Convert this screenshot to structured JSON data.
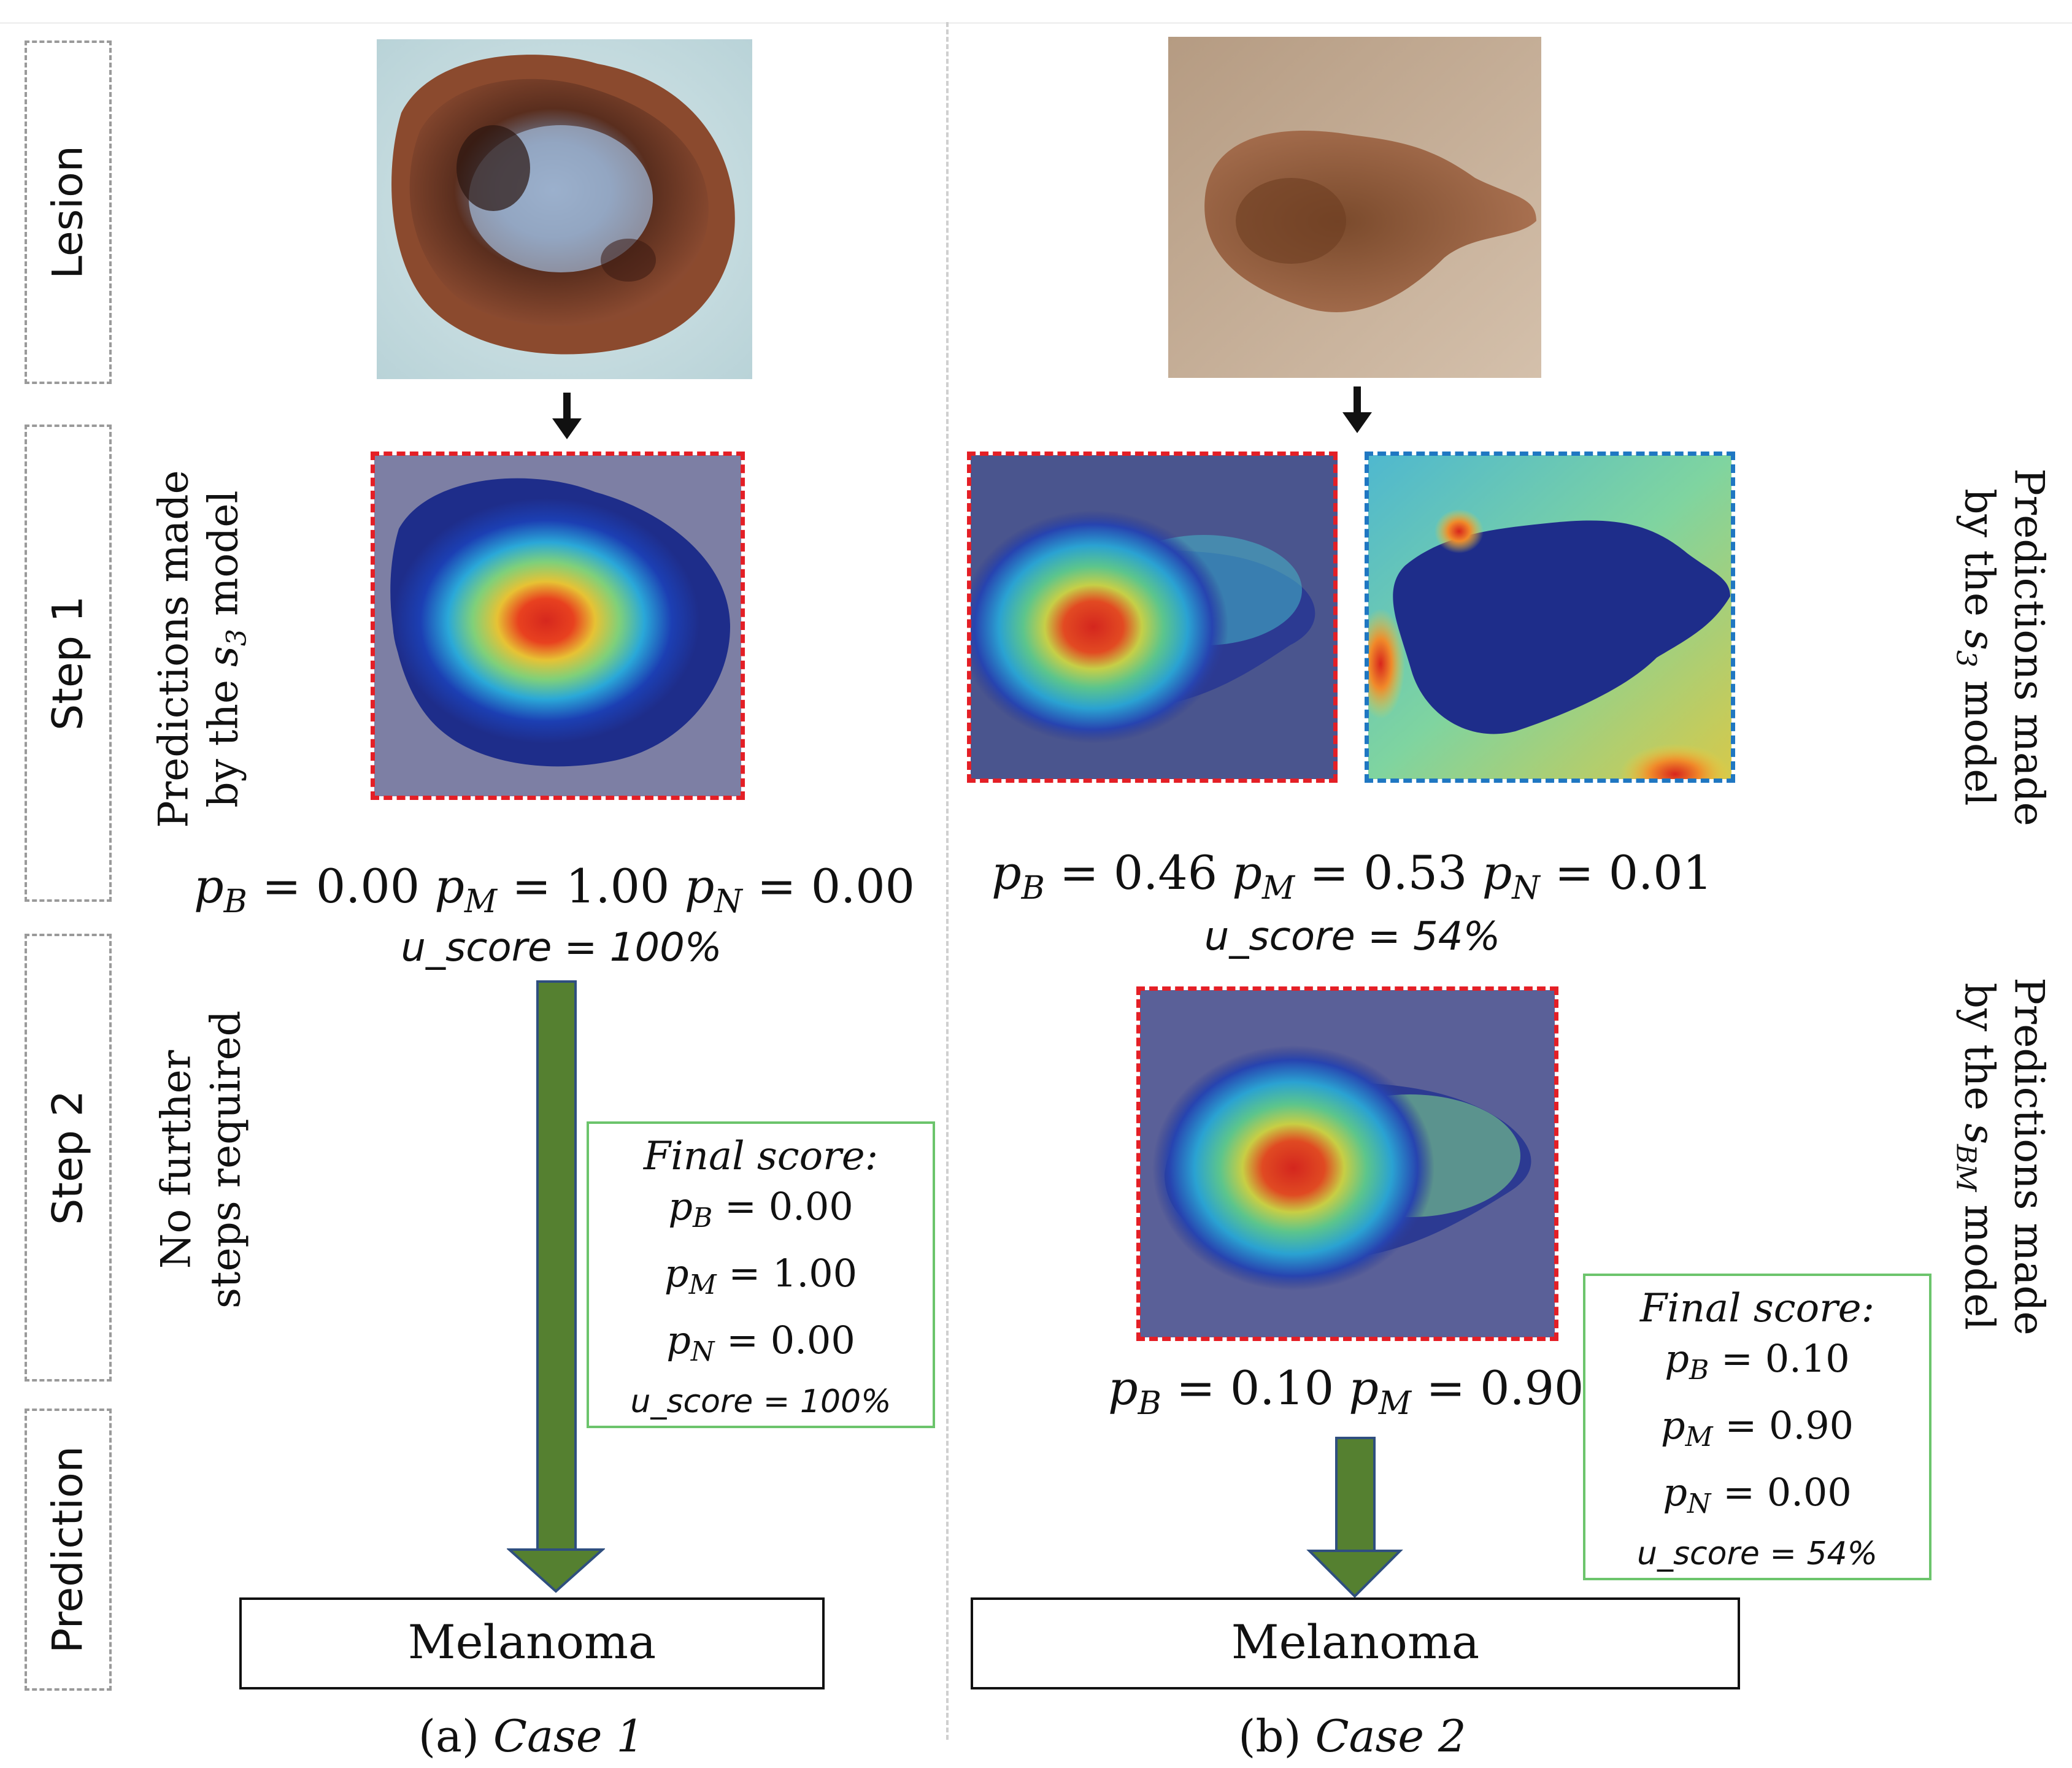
{
  "row_labels": {
    "lesion": "Lesion",
    "step1": "Step 1",
    "step2": "Step 2",
    "prediction": "Prediction"
  },
  "annotations": {
    "left_step1_line1": "Predictions made",
    "left_step1_line2_prefix": "by the ",
    "left_step1_model_var": "s",
    "left_step1_model_sub": "3",
    "left_step1_suffix": " model",
    "left_step2_line1": "No further",
    "left_step2_line2": "steps required",
    "right_step1_line1": "Predictions made",
    "right_step1_line2_prefix": "by the ",
    "right_step1_model_var": "s",
    "right_step1_model_sub": "3",
    "right_step1_suffix": " model",
    "right_step2_line1": "Predictions made",
    "right_step2_line2_prefix": "by the ",
    "right_step2_model_var": "s",
    "right_step2_model_sub": "BM",
    "right_step2_suffix": " model"
  },
  "prob_symbols": {
    "p": "p",
    "B": "B",
    "M": "M",
    "N": "N",
    "eq": " = "
  },
  "case1": {
    "step1_pB": "0.00",
    "step1_pM": "1.00",
    "step1_pN": "0.00",
    "step1_uscore": "u_score = 100%",
    "final_title": "Final score:",
    "final_pB": "0.00",
    "final_pM": "1.00",
    "final_pN": "0.00",
    "final_uscore": "u_score = 100%",
    "output": "Melanoma",
    "caption_label": "(a)",
    "caption_text": "Case 1"
  },
  "case2": {
    "step1_pB": "0.46",
    "step1_pM": "0.53",
    "step1_pN": "0.01",
    "step1_uscore": "u_score = 54%",
    "step2_pB": "0.10",
    "step2_pM": "0.90",
    "final_title": "Final score:",
    "final_pB": "0.10",
    "final_pM": "0.90",
    "final_pN": "0.00",
    "final_uscore": "u_score = 54%",
    "output": "Melanoma",
    "caption_label": "(b)",
    "caption_text": "Case 2"
  },
  "colors": {
    "red_frame": "#e41f26",
    "blue_frame": "#1f77c2",
    "green_arrow": "#558030",
    "final_box_border": "#6cc46c"
  }
}
